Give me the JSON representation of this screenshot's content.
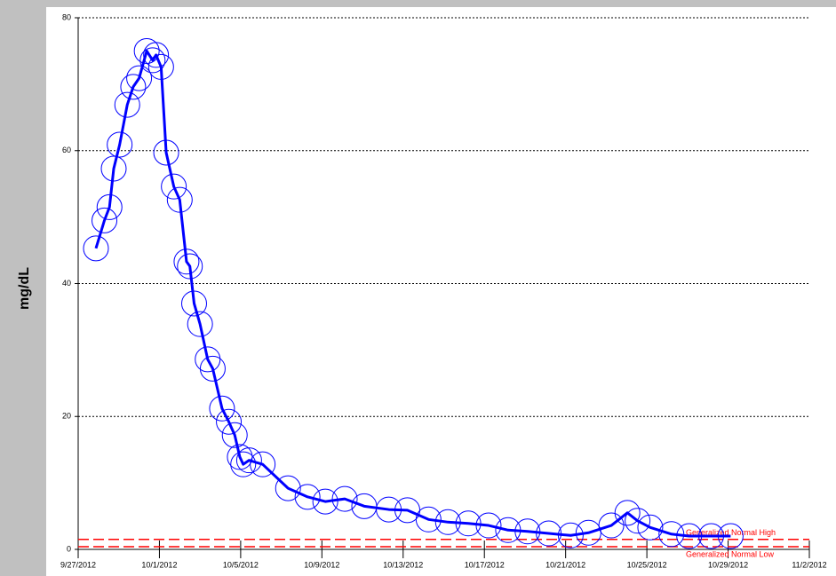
{
  "chart_data": {
    "type": "line",
    "y_label": "mg/dL",
    "xlim": [
      "2012-09-27",
      "2012-11-02"
    ],
    "xticks": [
      {
        "value": "2012-09-27",
        "label": "9/27/2012"
      },
      {
        "value": "2012-10-01",
        "label": "10/1/2012"
      },
      {
        "value": "2012-10-05",
        "label": "10/5/2012"
      },
      {
        "value": "2012-10-09",
        "label": "10/9/2012"
      },
      {
        "value": "2012-10-13",
        "label": "10/13/2012"
      },
      {
        "value": "2012-10-17",
        "label": "10/17/2012"
      },
      {
        "value": "2012-10-21",
        "label": "10/21/2012"
      },
      {
        "value": "2012-10-25",
        "label": "10/25/2012"
      },
      {
        "value": "2012-10-29",
        "label": "10/29/2012"
      },
      {
        "value": "2012-11-02",
        "label": "11/2/2012"
      }
    ],
    "ylim": [
      0,
      80
    ],
    "yticks": [
      0,
      20,
      40,
      60,
      80
    ],
    "grid": true,
    "x": [
      "2012-09-27T21:00",
      "2012-09-28T07:00",
      "2012-09-28T13:00",
      "2012-09-28T18:00",
      "2012-09-29T01:00",
      "2012-09-29T10:00",
      "2012-09-29T17:00",
      "2012-09-30T00:00",
      "2012-09-30T09:00",
      "2012-09-30T16:00",
      "2012-09-30T20:00",
      "2012-10-01T02:00",
      "2012-10-01T08:00",
      "2012-10-01T17:00",
      "2012-10-02T00:00",
      "2012-10-02T08:00",
      "2012-10-02T12:00",
      "2012-10-02T17:00",
      "2012-10-03T00:00",
      "2012-10-03T09:00",
      "2012-10-03T15:00",
      "2012-10-04T02:00",
      "2012-10-04T10:00",
      "2012-10-04T17:00",
      "2012-10-04T23:00",
      "2012-10-05T03:00",
      "2012-10-05T10:00",
      "2012-10-06T02:00",
      "2012-10-07T08:00",
      "2012-10-08T07:00",
      "2012-10-09T04:00",
      "2012-10-10T03:00",
      "2012-10-11T02:00",
      "2012-10-12T07:00",
      "2012-10-13T05:00",
      "2012-10-14T06:00",
      "2012-10-15T05:00",
      "2012-10-16T05:00",
      "2012-10-17T05:00",
      "2012-10-18T04:00",
      "2012-10-19T03:00",
      "2012-10-20T04:00",
      "2012-10-21T06:00",
      "2012-10-22T03:00",
      "2012-10-23T06:00",
      "2012-10-24T01:00",
      "2012-10-24T13:00",
      "2012-10-25T04:00",
      "2012-10-26T05:00",
      "2012-10-27T02:00",
      "2012-10-28T04:00",
      "2012-10-29T03:00"
    ],
    "series": [
      {
        "color": "#0000ff",
        "values": [
          45.3,
          49.5,
          51.5,
          57.3,
          60.9,
          66.9,
          69.6,
          70.9,
          75.0,
          73.6,
          74.4,
          72.6,
          59.7,
          54.6,
          52.6,
          43.3,
          42.6,
          37.0,
          33.9,
          28.6,
          27.2,
          21.2,
          19.2,
          17.2,
          13.9,
          12.8,
          13.4,
          12.8,
          9.2,
          7.9,
          7.2,
          7.6,
          6.5,
          6.0,
          5.9,
          4.5,
          4.1,
          3.9,
          3.6,
          2.9,
          2.7,
          2.4,
          2.1,
          2.5,
          3.6,
          5.5,
          4.3,
          3.3,
          2.3,
          2.0,
          2.0,
          2.0
        ]
      }
    ],
    "reference_lines": [
      {
        "label": "Generalized Normal High",
        "value": 1.5,
        "color": "#ff0000"
      },
      {
        "label": "Generalized Normal Low",
        "value": 0.4,
        "color": "#ff0000"
      }
    ]
  }
}
